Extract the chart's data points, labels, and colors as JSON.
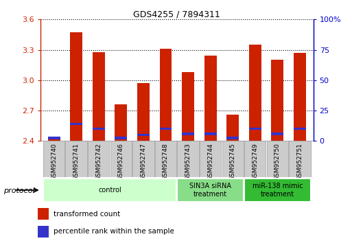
{
  "title": "GDS4255 / 7894311",
  "samples": [
    "GSM952740",
    "GSM952741",
    "GSM952742",
    "GSM952746",
    "GSM952747",
    "GSM952748",
    "GSM952743",
    "GSM952744",
    "GSM952745",
    "GSM952749",
    "GSM952750",
    "GSM952751"
  ],
  "red_values": [
    2.43,
    3.47,
    3.28,
    2.76,
    2.97,
    3.31,
    3.08,
    3.24,
    2.66,
    3.35,
    3.2,
    3.27
  ],
  "blue_values": [
    2.43,
    2.57,
    2.52,
    2.43,
    2.46,
    2.52,
    2.47,
    2.47,
    2.43,
    2.52,
    2.47,
    2.52
  ],
  "ymin": 2.4,
  "ymax": 3.6,
  "yticks": [
    2.4,
    2.7,
    3.0,
    3.3,
    3.6
  ],
  "right_yticks": [
    0,
    25,
    50,
    75,
    100
  ],
  "bar_color": "#cc2200",
  "blue_color": "#3333cc",
  "groups": [
    {
      "label": "control",
      "start": 0,
      "end": 6,
      "color": "#ccffcc"
    },
    {
      "label": "SIN3A siRNA\ntreatment",
      "start": 6,
      "end": 9,
      "color": "#88dd88"
    },
    {
      "label": "miR-138 mimic\ntreatment",
      "start": 9,
      "end": 12,
      "color": "#33bb33"
    }
  ],
  "protocol_label": "protocol",
  "legend_red": "transformed count",
  "legend_blue": "percentile rank within the sample",
  "bar_width": 0.55,
  "background_color": "#ffffff",
  "ylabel_color": "#cc2200",
  "right_ylabel_color": "#0000cc",
  "label_bg_color": "#cccccc",
  "label_border_color": "#999999"
}
